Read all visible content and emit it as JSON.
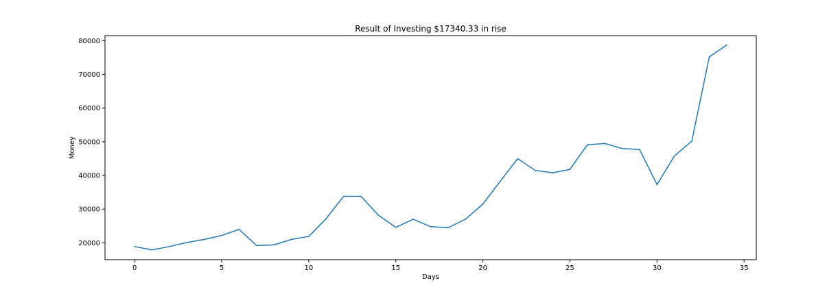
{
  "chart_data": {
    "type": "line",
    "title": "Result of Investing $17340.33 in rise",
    "xlabel": "Days",
    "ylabel": "Money",
    "xlim": [
      -1.7,
      35.7
    ],
    "ylim": [
      15000,
      81500
    ],
    "xticks": [
      0,
      5,
      10,
      15,
      20,
      25,
      30,
      35
    ],
    "yticks": [
      20000,
      30000,
      40000,
      50000,
      60000,
      70000,
      80000
    ],
    "grid": false,
    "series": [
      {
        "name": "Money",
        "color": "#1f77b4",
        "x": [
          0,
          1,
          2,
          3,
          4,
          5,
          6,
          7,
          8,
          9,
          10,
          11,
          12,
          13,
          14,
          15,
          16,
          17,
          18,
          19,
          20,
          21,
          22,
          23,
          24,
          25,
          26,
          27,
          28,
          29,
          30,
          31,
          32,
          33,
          34
        ],
        "values": [
          18900,
          17900,
          18900,
          20100,
          21000,
          22200,
          24000,
          19200,
          19400,
          21000,
          21900,
          27200,
          33800,
          33800,
          28200,
          24600,
          27000,
          24800,
          24500,
          27000,
          31500,
          38300,
          45000,
          41500,
          40800,
          41800,
          49100,
          49500,
          48000,
          47700,
          37300,
          45800,
          50200,
          75200,
          78700
        ]
      }
    ]
  }
}
